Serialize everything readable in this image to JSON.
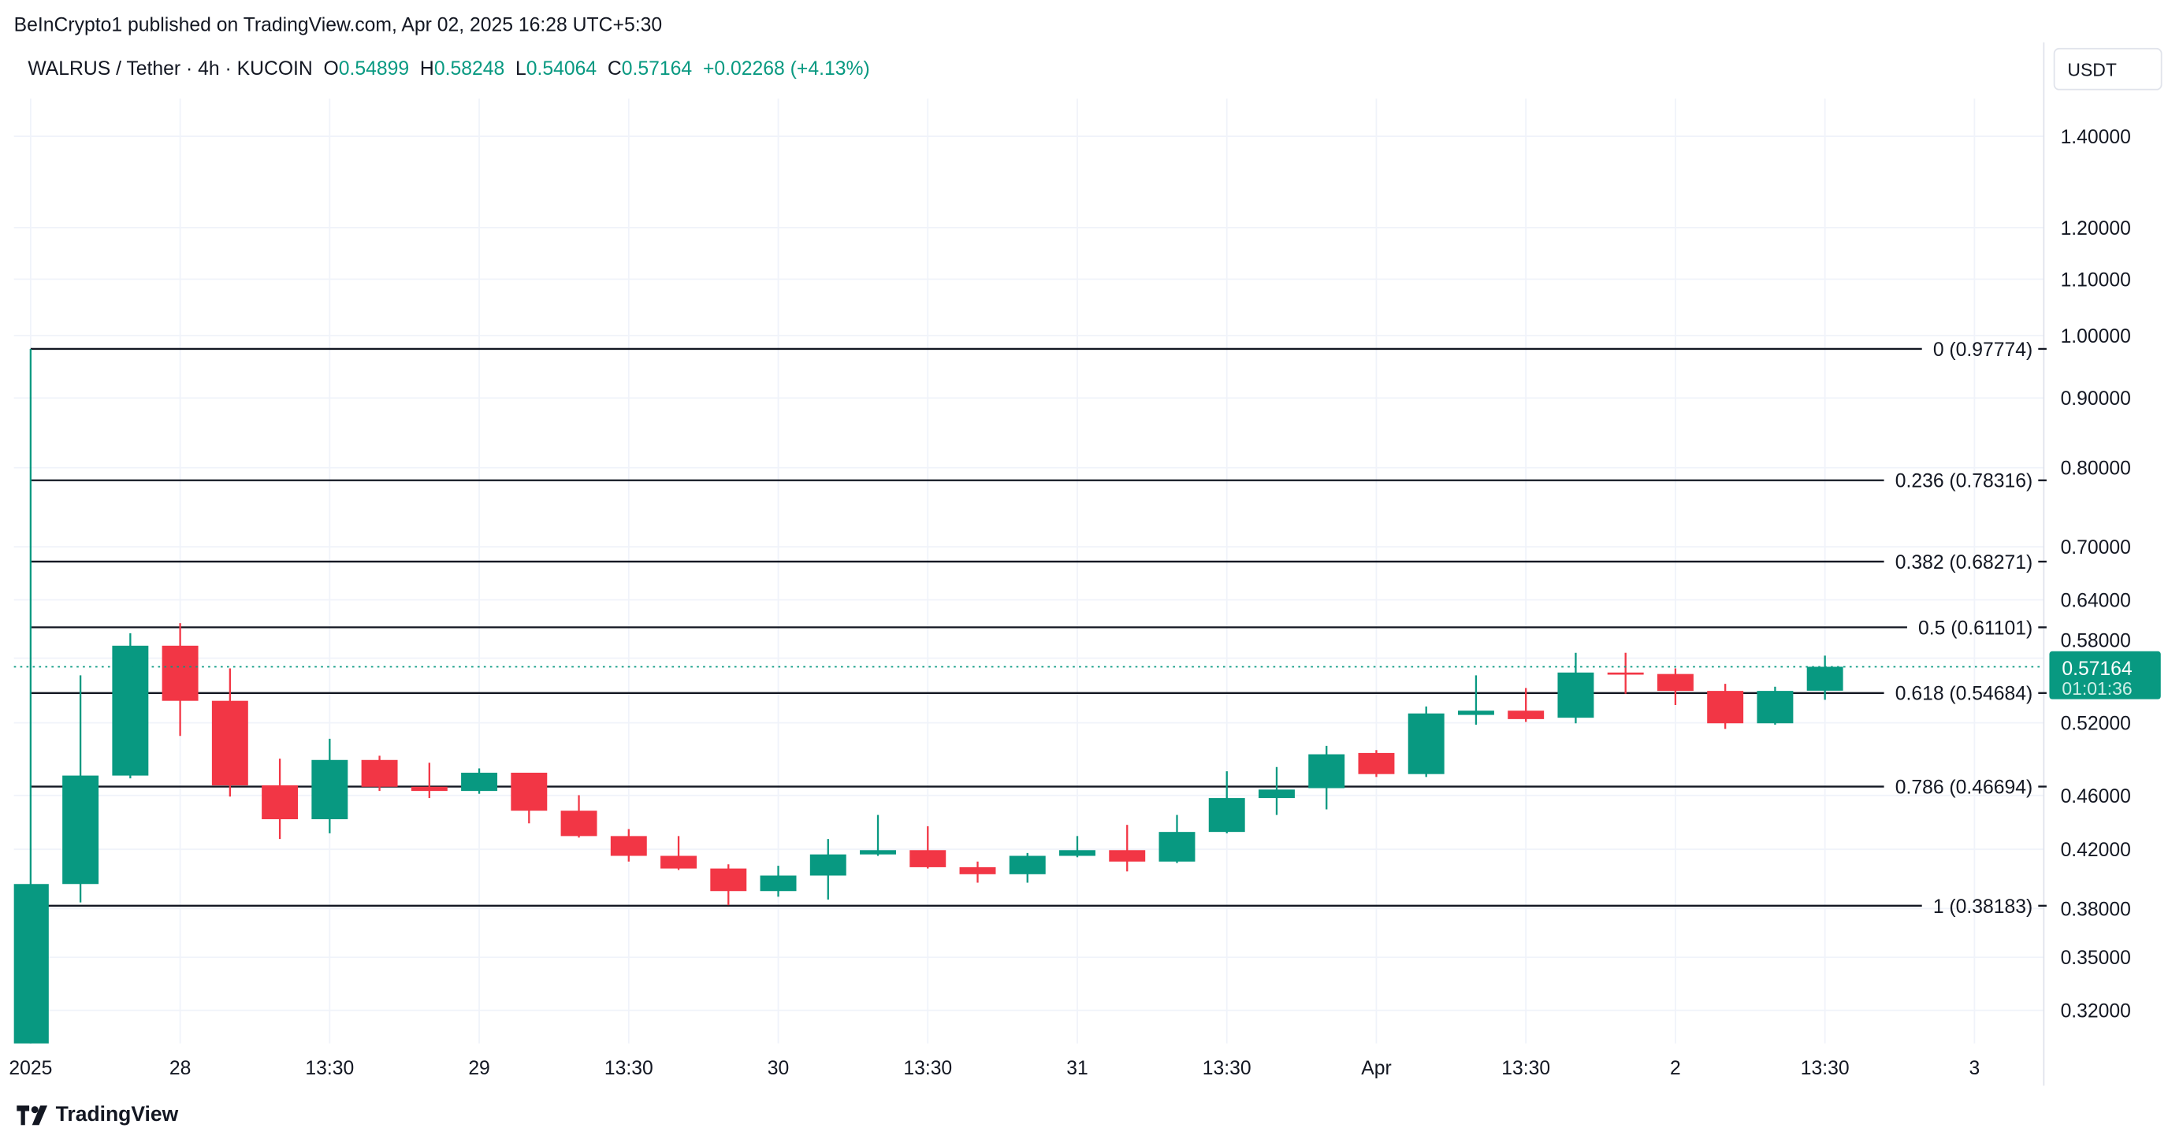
{
  "header": {
    "published": "BeInCrypto1 published on TradingView.com, Apr 02, 2025 16:28 UTC+5:30"
  },
  "legend": {
    "symbol": "WALRUS / Tether · 4h · KUCOIN",
    "o_label": "O",
    "o": "0.54899",
    "h_label": "H",
    "h": "0.58248",
    "l_label": "L",
    "l": "0.54064",
    "c_label": "C",
    "c": "0.57164",
    "change": "+0.02268 (+4.13%)"
  },
  "currency_button": "USDT",
  "brand": "TradingView",
  "colors": {
    "up": "#089981",
    "down": "#f23645",
    "grid": "#f0f3fa",
    "fib": "#131722"
  },
  "chart_data": {
    "type": "candlestick",
    "title": "WALRUS / Tether · 4h · KUCOIN",
    "scale": "log",
    "y_ticks": [
      "1.40000",
      "1.20000",
      "1.10000",
      "1.00000",
      "0.90000",
      "0.80000",
      "0.70000",
      "0.64000",
      "0.58000",
      "0.52000",
      "0.46000",
      "0.42000",
      "0.38000",
      "0.35000",
      "0.32000"
    ],
    "x_labels": [
      {
        "i": 0,
        "t": "2025"
      },
      {
        "i": 3,
        "t": "28"
      },
      {
        "i": 6,
        "t": "13:30"
      },
      {
        "i": 9,
        "t": "29"
      },
      {
        "i": 12,
        "t": "13:30"
      },
      {
        "i": 15,
        "t": "30"
      },
      {
        "i": 18,
        "t": "13:30"
      },
      {
        "i": 21,
        "t": "31"
      },
      {
        "i": 24,
        "t": "13:30"
      },
      {
        "i": 27,
        "t": "Apr"
      },
      {
        "i": 30,
        "t": "13:30"
      },
      {
        "i": 33,
        "t": "2"
      },
      {
        "i": 36,
        "t": "13:30"
      },
      {
        "i": 39,
        "t": "3"
      }
    ],
    "candles_ohlc": [
      [
        0.3,
        0.97774,
        0.29,
        0.3961
      ],
      [
        0.3961,
        0.5634,
        0.384,
        0.4757
      ],
      [
        0.4757,
        0.605,
        0.4735,
        0.5923
      ],
      [
        0.5923,
        0.6153,
        0.5086,
        0.5397
      ],
      [
        0.5397,
        0.5701,
        0.4591,
        0.4679
      ],
      [
        0.4679,
        0.4895,
        0.4274,
        0.4419
      ],
      [
        0.4419,
        0.5062,
        0.4315,
        0.4884
      ],
      [
        0.4884,
        0.4919,
        0.4635,
        0.4668
      ],
      [
        0.4668,
        0.4861,
        0.458,
        0.4635
      ],
      [
        0.4635,
        0.4815,
        0.4613,
        0.478
      ],
      [
        0.478,
        0.478,
        0.4388,
        0.4483
      ],
      [
        0.4483,
        0.4602,
        0.4284,
        0.4295
      ],
      [
        0.4295,
        0.4346,
        0.4114,
        0.4154
      ],
      [
        0.4154,
        0.4295,
        0.4056,
        0.4066
      ],
      [
        0.4066,
        0.4095,
        0.3822,
        0.3914
      ],
      [
        0.3914,
        0.4085,
        0.3877,
        0.4018
      ],
      [
        0.4018,
        0.4274,
        0.3858,
        0.4164
      ],
      [
        0.4164,
        0.4451,
        0.4154,
        0.4194
      ],
      [
        0.4194,
        0.4367,
        0.4066,
        0.4075
      ],
      [
        0.4075,
        0.4114,
        0.397,
        0.4027
      ],
      [
        0.4027,
        0.4174,
        0.397,
        0.4154
      ],
      [
        0.4154,
        0.4295,
        0.4144,
        0.4194
      ],
      [
        0.4194,
        0.4377,
        0.4046,
        0.4114
      ],
      [
        0.4114,
        0.4451,
        0.4104,
        0.4325
      ],
      [
        0.4325,
        0.4792,
        0.4315,
        0.458
      ],
      [
        0.458,
        0.4826,
        0.4451,
        0.4646
      ],
      [
        0.4657,
        0.5002,
        0.4493,
        0.4931
      ],
      [
        0.4942,
        0.4966,
        0.4746,
        0.4769
      ],
      [
        0.4769,
        0.5346,
        0.4746,
        0.5283
      ],
      [
        0.527,
        0.5634,
        0.5184,
        0.5308
      ],
      [
        0.5308,
        0.5515,
        0.5208,
        0.5233
      ],
      [
        0.5245,
        0.5853,
        0.5196,
        0.5661
      ],
      [
        0.5661,
        0.5853,
        0.5462,
        0.5647
      ],
      [
        0.5647,
        0.5701,
        0.5359,
        0.5488
      ],
      [
        0.5488,
        0.5554,
        0.5147,
        0.5196
      ],
      [
        0.5196,
        0.5527,
        0.5184,
        0.5488
      ],
      [
        0.54899,
        0.58248,
        0.54064,
        0.57164
      ]
    ],
    "fib_levels": [
      {
        "ratio": "0",
        "price": 0.97774,
        "label": "0 (0.97774)"
      },
      {
        "ratio": "0.236",
        "price": 0.78316,
        "label": "0.236 (0.78316)"
      },
      {
        "ratio": "0.382",
        "price": 0.68271,
        "label": "0.382 (0.68271)"
      },
      {
        "ratio": "0.5",
        "price": 0.61101,
        "label": "0.5 (0.61101)"
      },
      {
        "ratio": "0.618",
        "price": 0.54684,
        "label": "0.618 (0.54684)"
      },
      {
        "ratio": "0.786",
        "price": 0.46694,
        "label": "0.786 (0.46694)"
      },
      {
        "ratio": "1",
        "price": 0.38183,
        "label": "1 (0.38183)"
      }
    ],
    "last_price": {
      "value": 0.57164,
      "label": "0.57164",
      "countdown": "01:01:36"
    }
  }
}
